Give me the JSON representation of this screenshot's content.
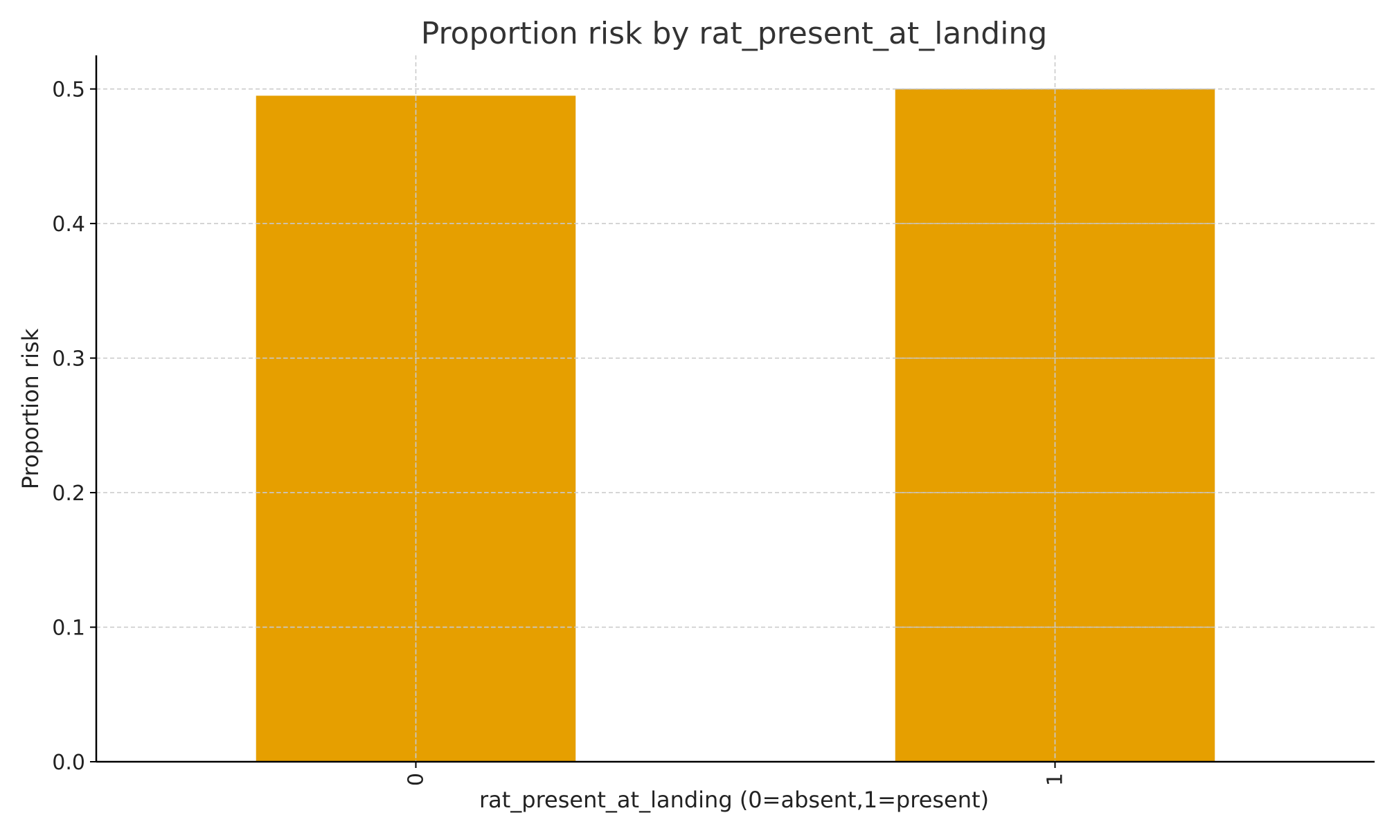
{
  "chart_data": {
    "type": "bar",
    "title": "Proportion risk by rat_present_at_landing",
    "xlabel": "rat_present_at_landing (0=absent,1=present)",
    "ylabel": "Proportion risk",
    "categories": [
      "0",
      "1"
    ],
    "values": [
      0.495,
      0.5
    ],
    "ylim": [
      0,
      0.525
    ],
    "yticks": [
      0.0,
      0.1,
      0.2,
      0.3,
      0.4,
      0.5
    ],
    "ytick_labels": [
      "0.0",
      "0.1",
      "0.2",
      "0.3",
      "0.4",
      "0.5"
    ],
    "bar_color": "#E69F00",
    "grid": true,
    "xtick_rotation": "vertical"
  }
}
